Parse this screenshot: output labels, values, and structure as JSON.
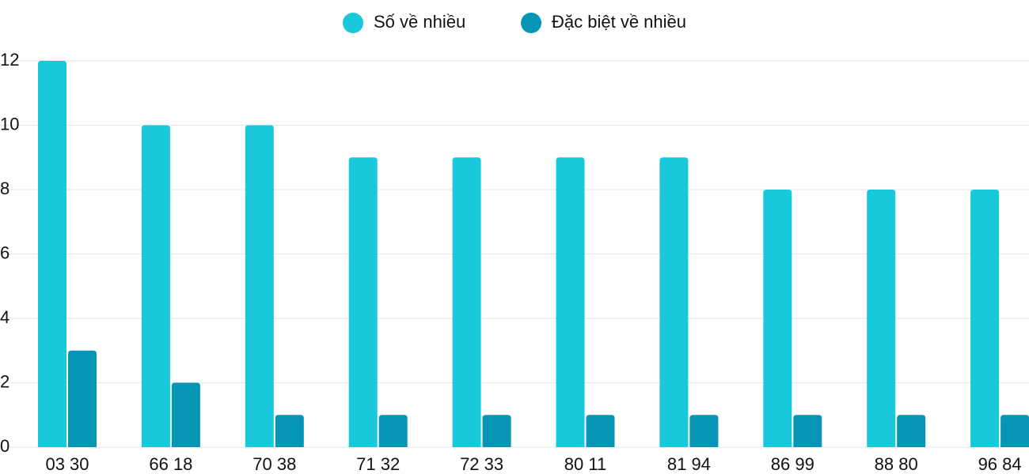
{
  "chart_data": {
    "type": "bar",
    "categories": [
      "03 30",
      "66 18",
      "70 38",
      "71 32",
      "72 33",
      "80 11",
      "81 94",
      "86 99",
      "88 80",
      "96 84"
    ],
    "series": [
      {
        "name": "Số về nhiều",
        "color": "#1ac8db",
        "values": [
          12,
          10,
          10,
          9,
          9,
          9,
          9,
          8,
          8,
          8
        ]
      },
      {
        "name": "Đặc biệt về nhiều",
        "color": "#0795b5",
        "values": [
          3,
          2,
          1,
          1,
          1,
          1,
          1,
          1,
          1,
          1
        ]
      }
    ],
    "ylim": [
      0,
      12
    ],
    "yticks": [
      0,
      2,
      4,
      6,
      8,
      10,
      12
    ],
    "grid": true,
    "legend": "top"
  }
}
